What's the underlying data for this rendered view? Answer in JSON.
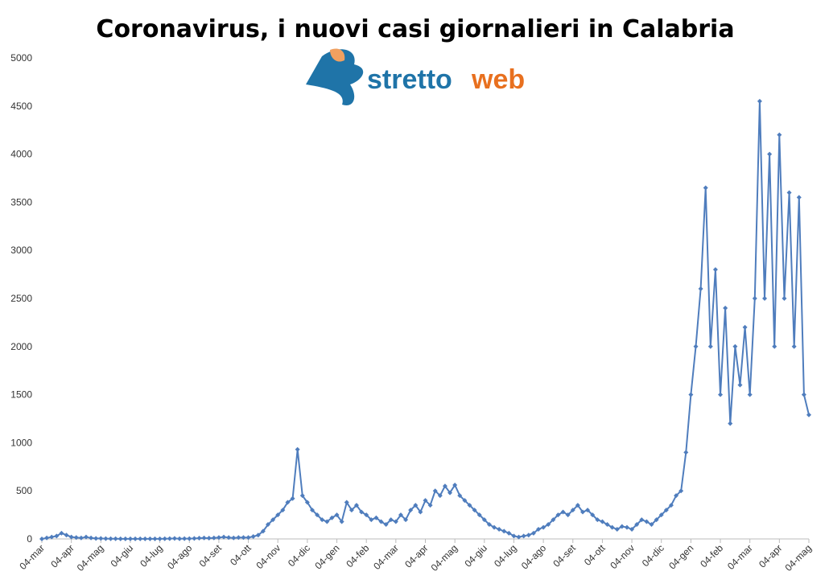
{
  "chart_data": {
    "type": "line",
    "title": "Coronavirus, i nuovi casi giornalieri in Calabria",
    "logo": [
      "stretto",
      "web"
    ],
    "categories": [
      "04-mar",
      null,
      null,
      null,
      null,
      null,
      "04-apr",
      null,
      null,
      null,
      null,
      null,
      "04-mag",
      null,
      null,
      null,
      null,
      null,
      "04-giu",
      null,
      null,
      null,
      null,
      null,
      "04-lug",
      null,
      null,
      null,
      null,
      null,
      "04-ago",
      null,
      null,
      null,
      null,
      null,
      "04-set",
      null,
      null,
      null,
      null,
      null,
      "04-ott",
      null,
      null,
      null,
      null,
      null,
      "04-nov",
      null,
      null,
      null,
      null,
      null,
      "04-dic",
      null,
      null,
      null,
      null,
      null,
      "04-gen",
      null,
      null,
      null,
      null,
      null,
      "04-feb",
      null,
      null,
      null,
      null,
      null,
      "04-mar",
      null,
      null,
      null,
      null,
      null,
      "04-apr",
      null,
      null,
      null,
      null,
      null,
      "04-mag",
      null,
      null,
      null,
      null,
      null,
      "04-giu",
      null,
      null,
      null,
      null,
      null,
      "04-lug",
      null,
      null,
      null,
      null,
      null,
      "04-ago",
      null,
      null,
      null,
      null,
      null,
      "04-set",
      null,
      null,
      null,
      null,
      null,
      "04-ott",
      null,
      null,
      null,
      null,
      null,
      "04-nov",
      null,
      null,
      null,
      null,
      null,
      "04-dic",
      null,
      null,
      null,
      null,
      null,
      "04-gen",
      null,
      null,
      null,
      null,
      null,
      "04-feb",
      null,
      null,
      null,
      null,
      null,
      "04-mar",
      null,
      null,
      null,
      null,
      null,
      "04-apr",
      null,
      null,
      null,
      null,
      null,
      "04-mag"
    ],
    "series": [
      {
        "name": "nuovi casi",
        "color": "#4f7dbd",
        "values": [
          0,
          10,
          20,
          30,
          60,
          40,
          20,
          15,
          10,
          20,
          10,
          5,
          5,
          3,
          2,
          2,
          1,
          1,
          1,
          1,
          1,
          1,
          1,
          1,
          1,
          2,
          3,
          5,
          2,
          3,
          3,
          5,
          8,
          10,
          8,
          10,
          15,
          20,
          15,
          10,
          15,
          15,
          15,
          25,
          40,
          80,
          150,
          200,
          250,
          300,
          380,
          420,
          930,
          450,
          380,
          300,
          250,
          200,
          180,
          220,
          250,
          180,
          380,
          300,
          350,
          280,
          250,
          200,
          220,
          180,
          150,
          200,
          180,
          250,
          200,
          300,
          350,
          280,
          400,
          350,
          500,
          450,
          550,
          480,
          560,
          450,
          400,
          350,
          300,
          250,
          200,
          150,
          120,
          100,
          80,
          60,
          30,
          20,
          30,
          40,
          60,
          100,
          120,
          150,
          200,
          250,
          280,
          250,
          300,
          350,
          280,
          300,
          250,
          200,
          180,
          150,
          120,
          100,
          130,
          120,
          100,
          150,
          200,
          180,
          150,
          200,
          250,
          300,
          350,
          450,
          500,
          900,
          1500,
          2000,
          2600,
          3650,
          2000,
          2800,
          1500,
          2400,
          1200,
          2000,
          1600,
          2200,
          1500,
          2500,
          4550,
          2500,
          4000,
          2000,
          4200,
          2500,
          3600,
          2000,
          3550,
          1500,
          1290
        ]
      }
    ],
    "ylim": [
      0,
      5000
    ],
    "yticks": [
      0,
      500,
      1000,
      1500,
      2000,
      2500,
      3000,
      3500,
      4000,
      4500,
      5000
    ]
  }
}
